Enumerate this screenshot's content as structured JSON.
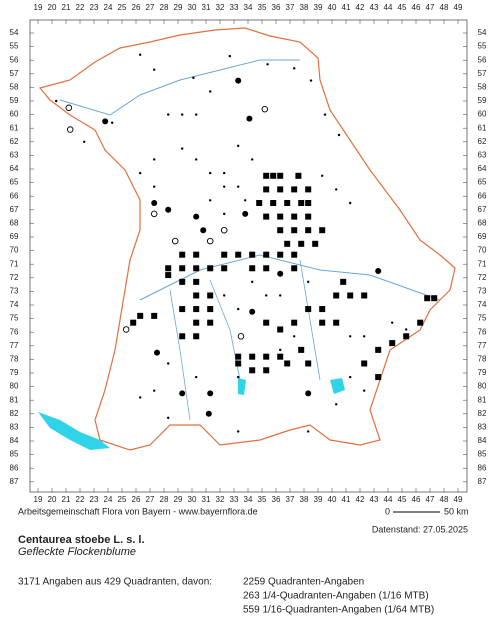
{
  "map": {
    "columns": [
      19,
      20,
      21,
      22,
      23,
      24,
      25,
      26,
      27,
      28,
      29,
      30,
      31,
      32,
      33,
      34,
      35,
      36,
      37,
      38,
      39,
      40,
      41,
      42,
      43,
      44,
      45,
      46,
      47,
      48,
      49
    ],
    "rows": [
      54,
      55,
      56,
      57,
      58,
      59,
      60,
      61,
      62,
      63,
      64,
      65,
      66,
      67,
      68,
      69,
      70,
      71,
      72,
      73,
      74,
      75,
      76,
      77,
      78,
      79,
      80,
      81,
      82,
      83,
      84,
      85,
      86,
      87
    ],
    "credit": "Arbeitsgemeinschaft Flora von Bayern - www.bayernflora.de",
    "scale": {
      "start": "0",
      "end": "50 km"
    },
    "date": "Datenstand: 27.05.2025",
    "title": "Centaurea stoebe L. s. l.",
    "subtitle": "Gefleckte Flockenblume",
    "summary": "3171 Angaben aus 429 Quadranten, davon:",
    "breakdown": [
      "2259 Quadranten-Angaben",
      "263 1/4-Quadranten-Angaben (1/16 MTB)",
      "559 1/16-Quadranten-Angaben (1/64 MTB)"
    ],
    "records": [
      [
        35.3,
        64.5,
        "q"
      ],
      [
        35.8,
        64.5,
        "q"
      ],
      [
        36.3,
        64.5,
        "q"
      ],
      [
        37.6,
        64.5,
        "q"
      ],
      [
        35.3,
        65.5,
        "q"
      ],
      [
        36.3,
        65.5,
        "q"
      ],
      [
        37.3,
        65.5,
        "q"
      ],
      [
        38.3,
        65.5,
        "q"
      ],
      [
        34.8,
        66.5,
        "q"
      ],
      [
        35.8,
        66.5,
        "q"
      ],
      [
        36.8,
        66.5,
        "q"
      ],
      [
        37.8,
        66.5,
        "q"
      ],
      [
        38.3,
        66.5,
        "q"
      ],
      [
        35.3,
        67.5,
        "q"
      ],
      [
        36.3,
        67.5,
        "q"
      ],
      [
        37.3,
        67.5,
        "q"
      ],
      [
        38.3,
        67.5,
        "q"
      ],
      [
        36.3,
        68.5,
        "q"
      ],
      [
        37.3,
        68.5,
        "q"
      ],
      [
        38.3,
        68.5,
        "q"
      ],
      [
        39.3,
        68.5,
        "q"
      ],
      [
        36.8,
        69.5,
        "q"
      ],
      [
        37.8,
        69.5,
        "q"
      ],
      [
        38.8,
        69.5,
        "q"
      ],
      [
        29.3,
        70.3,
        "q"
      ],
      [
        30.3,
        70.3,
        "q"
      ],
      [
        28.3,
        71.3,
        "q"
      ],
      [
        29.3,
        71.3,
        "q"
      ],
      [
        30.3,
        71.3,
        "q"
      ],
      [
        31.3,
        71.3,
        "q"
      ],
      [
        32.3,
        71.3,
        "q"
      ],
      [
        28.3,
        71.8,
        "q"
      ],
      [
        29.3,
        72.3,
        "q"
      ],
      [
        30.3,
        72.3,
        "q"
      ],
      [
        31.3,
        73.3,
        "q"
      ],
      [
        30.3,
        73.3,
        "q"
      ],
      [
        29.3,
        74.3,
        "q"
      ],
      [
        30.3,
        74.3,
        "q"
      ],
      [
        31.3,
        74.3,
        "q"
      ],
      [
        30.3,
        75.3,
        "q"
      ],
      [
        31.3,
        75.3,
        "q"
      ],
      [
        29.3,
        76.3,
        "q"
      ],
      [
        30.3,
        76.3,
        "q"
      ],
      [
        27.3,
        74.8,
        "q"
      ],
      [
        26.3,
        74.8,
        "q"
      ],
      [
        25.8,
        75.3,
        "q"
      ],
      [
        32.3,
        70.3,
        "q"
      ],
      [
        33.3,
        70.3,
        "q"
      ],
      [
        34.3,
        70.3,
        "q"
      ],
      [
        35.3,
        70.3,
        "q"
      ],
      [
        36.3,
        70.3,
        "q"
      ],
      [
        37.3,
        70.3,
        "q"
      ],
      [
        34.3,
        71.3,
        "q"
      ],
      [
        35.3,
        71.3,
        "q"
      ],
      [
        37.3,
        71.3,
        "q"
      ],
      [
        33.3,
        77.8,
        "q"
      ],
      [
        34.3,
        77.8,
        "q"
      ],
      [
        35.3,
        77.8,
        "q"
      ],
      [
        36.3,
        77.8,
        "q"
      ],
      [
        33.3,
        78.3,
        "q"
      ],
      [
        35.3,
        78.8,
        "q"
      ],
      [
        34.3,
        78.8,
        "q"
      ],
      [
        36.8,
        78.3,
        "q"
      ],
      [
        37.8,
        77.3,
        "q"
      ],
      [
        38.3,
        78.3,
        "q"
      ],
      [
        38.3,
        74.3,
        "q"
      ],
      [
        39.3,
        74.3,
        "q"
      ],
      [
        40.3,
        73.3,
        "q"
      ],
      [
        40.8,
        72.3,
        "q"
      ],
      [
        41.3,
        73.3,
        "q"
      ],
      [
        42.3,
        73.3,
        "q"
      ],
      [
        39.3,
        75.3,
        "q"
      ],
      [
        40.3,
        75.3,
        "q"
      ],
      [
        37.3,
        75.3,
        "q"
      ],
      [
        36.3,
        75.8,
        "q"
      ],
      [
        35.3,
        75.3,
        "q"
      ],
      [
        43.3,
        77.3,
        "q"
      ],
      [
        44.3,
        76.8,
        "q"
      ],
      [
        45.3,
        76.3,
        "q"
      ],
      [
        46.3,
        75.3,
        "q"
      ],
      [
        46.8,
        73.5,
        "q"
      ],
      [
        47.3,
        73.5,
        "q"
      ],
      [
        42.3,
        78.3,
        "q"
      ],
      [
        43.3,
        79.3,
        "q"
      ],
      [
        27.3,
        66.5,
        "d"
      ],
      [
        28.3,
        67.0,
        "d"
      ],
      [
        30.3,
        67.5,
        "d"
      ],
      [
        33.8,
        67.3,
        "d"
      ],
      [
        30.8,
        68.5,
        "d"
      ],
      [
        34.3,
        74.5,
        "d"
      ],
      [
        29.3,
        80.5,
        "d"
      ],
      [
        31.3,
        80.5,
        "d"
      ],
      [
        27.5,
        77.5,
        "d"
      ],
      [
        36.3,
        71.7,
        "d"
      ],
      [
        38.3,
        80.5,
        "d"
      ],
      [
        33.3,
        57.5,
        "d"
      ],
      [
        34.1,
        60.3,
        "d"
      ],
      [
        23.8,
        60.5,
        "d"
      ],
      [
        31.2,
        82.0,
        "d"
      ],
      [
        43.3,
        71.5,
        "d"
      ],
      [
        21.3,
        61.1,
        "o"
      ],
      [
        21.2,
        59.5,
        "o"
      ],
      [
        27.3,
        67.3,
        "o"
      ],
      [
        28.8,
        69.3,
        "o"
      ],
      [
        31.3,
        69.3,
        "o"
      ],
      [
        32.3,
        68.5,
        "o"
      ],
      [
        35.2,
        59.6,
        "o"
      ],
      [
        25.3,
        75.8,
        "o"
      ],
      [
        33.5,
        76.3,
        "o"
      ],
      [
        20.3,
        59.0,
        "s"
      ],
      [
        22.3,
        62.0,
        "s"
      ],
      [
        24.3,
        60.6,
        "s"
      ],
      [
        26.3,
        55.6,
        "s"
      ],
      [
        27.3,
        56.7,
        "s"
      ],
      [
        30.1,
        57.3,
        "s"
      ],
      [
        31.3,
        58.3,
        "s"
      ],
      [
        32.7,
        55.7,
        "s"
      ],
      [
        35.4,
        56.3,
        "s"
      ],
      [
        37.3,
        56.6,
        "s"
      ],
      [
        38.5,
        57.5,
        "s"
      ],
      [
        39.5,
        60.0,
        "s"
      ],
      [
        40.5,
        61.5,
        "s"
      ],
      [
        39.3,
        64.5,
        "s"
      ],
      [
        40.3,
        65.5,
        "s"
      ],
      [
        41.3,
        66.5,
        "s"
      ],
      [
        29.3,
        62.5,
        "s"
      ],
      [
        30.3,
        63.3,
        "s"
      ],
      [
        31.3,
        64.3,
        "s"
      ],
      [
        32.3,
        64.3,
        "s"
      ],
      [
        32.3,
        65.3,
        "s"
      ],
      [
        33.3,
        65.3,
        "s"
      ],
      [
        31.3,
        66.3,
        "s"
      ],
      [
        32.3,
        67.3,
        "s"
      ],
      [
        33.8,
        66.3,
        "s"
      ],
      [
        34.3,
        63.3,
        "s"
      ],
      [
        33.3,
        62.3,
        "s"
      ],
      [
        28.3,
        60.0,
        "s"
      ],
      [
        29.3,
        60.0,
        "s"
      ],
      [
        30.3,
        60.0,
        "s"
      ],
      [
        27.3,
        63.3,
        "s"
      ],
      [
        26.3,
        64.3,
        "s"
      ],
      [
        27.3,
        65.3,
        "s"
      ],
      [
        35.3,
        73.3,
        "s"
      ],
      [
        36.3,
        73.3,
        "s"
      ],
      [
        32.3,
        73.3,
        "s"
      ],
      [
        33.3,
        74.3,
        "s"
      ],
      [
        34.3,
        72.3,
        "s"
      ],
      [
        38.3,
        72.3,
        "s"
      ],
      [
        37.3,
        76.3,
        "s"
      ],
      [
        36.3,
        77.3,
        "s"
      ],
      [
        33.3,
        79.3,
        "s"
      ],
      [
        30.3,
        79.3,
        "s"
      ],
      [
        28.3,
        78.3,
        "s"
      ],
      [
        27.3,
        80.3,
        "s"
      ],
      [
        26.3,
        80.8,
        "s"
      ],
      [
        28.3,
        82.3,
        "s"
      ],
      [
        41.3,
        76.3,
        "s"
      ],
      [
        42.3,
        76.3,
        "s"
      ],
      [
        44.3,
        75.3,
        "s"
      ],
      [
        45.3,
        75.8,
        "s"
      ],
      [
        41.3,
        79.3,
        "s"
      ],
      [
        40.3,
        81.3,
        "s"
      ],
      [
        38.3,
        83.3,
        "s"
      ],
      [
        33.3,
        83.3,
        "s"
      ],
      [
        42.3,
        80.3,
        "s"
      ]
    ]
  }
}
